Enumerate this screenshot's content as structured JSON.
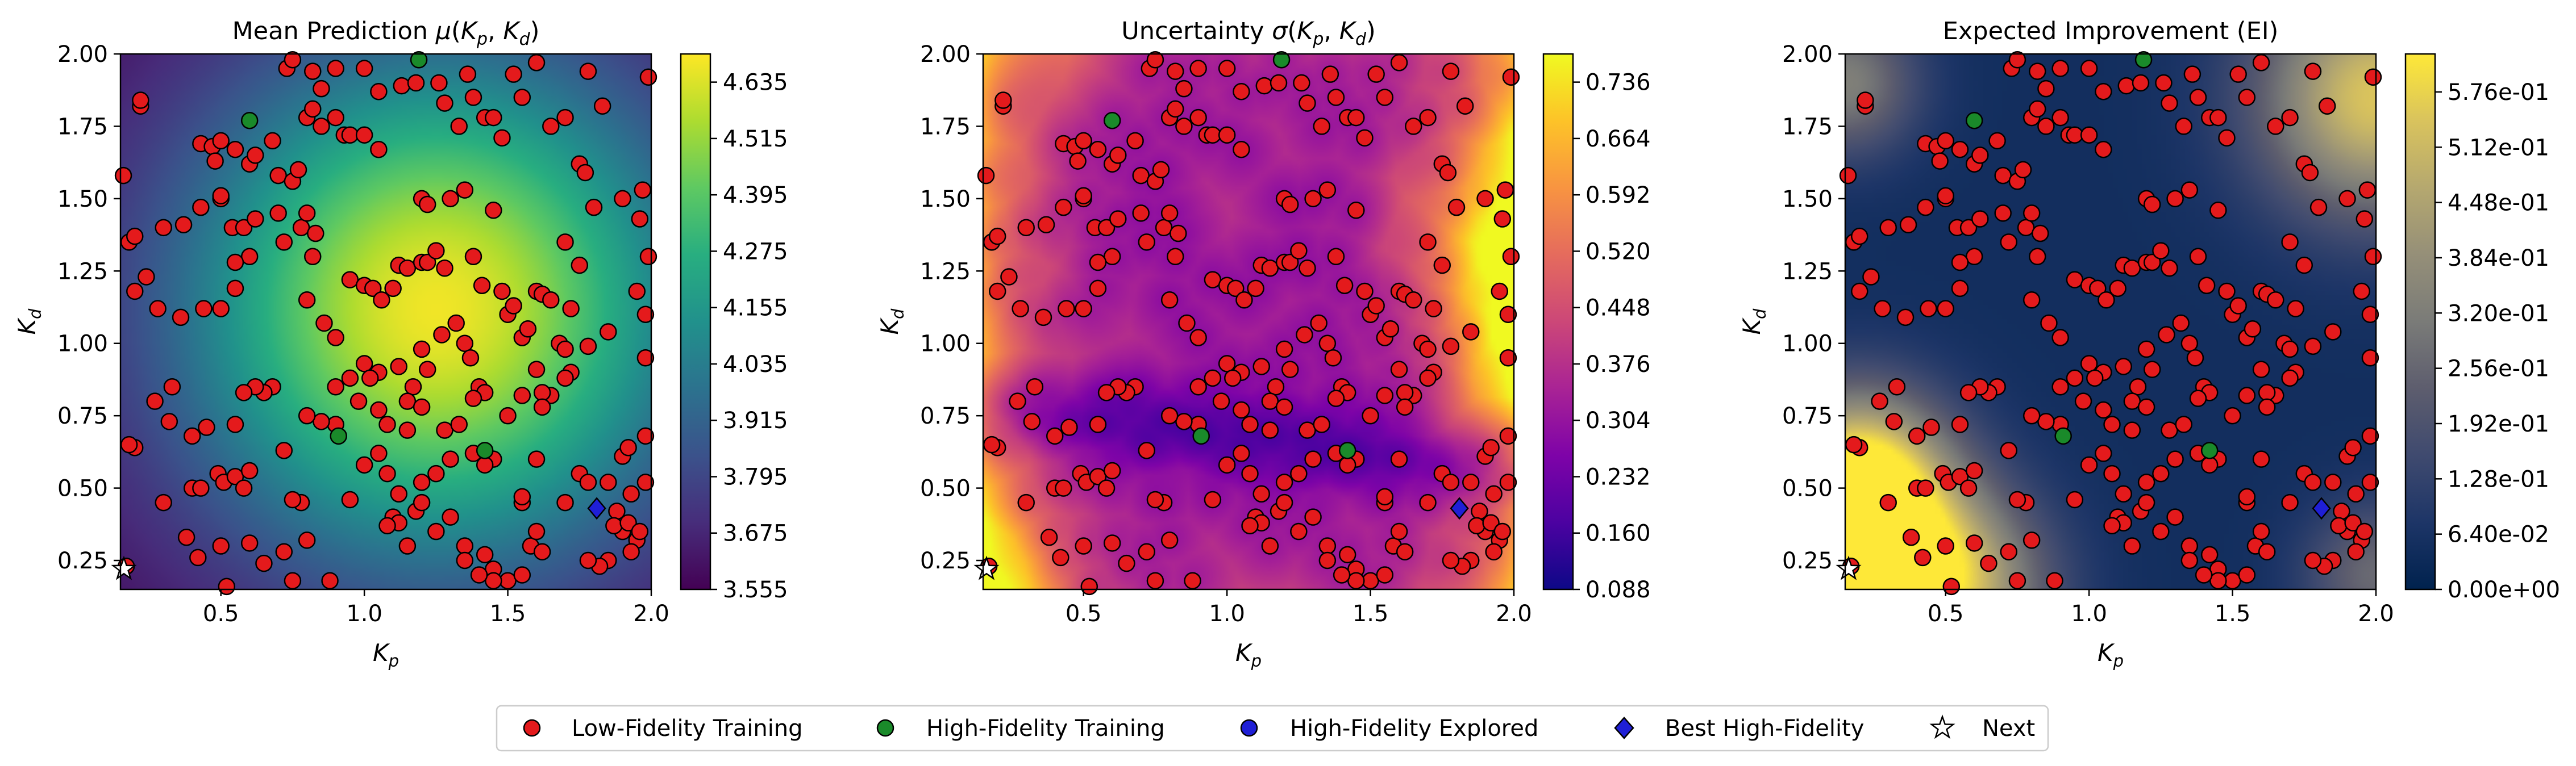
{
  "chart_data": [
    {
      "type": "heatmap",
      "title": "Mean Prediction μ(K_p, K_d)",
      "title_parts": {
        "pre": "Mean Prediction ",
        "sym": "μ",
        "open": "(",
        "a": "K",
        "asub": "p",
        "comma": ", ",
        "b": "K",
        "bsub": "d",
        "close": ")"
      },
      "xlabel": {
        "base": "K",
        "sub": "p"
      },
      "ylabel": {
        "base": "K",
        "sub": "d"
      },
      "xlim": [
        0.15,
        2.0
      ],
      "ylim": [
        0.15,
        2.0
      ],
      "xticks": [
        "0.5",
        "1.0",
        "1.5",
        "2.0"
      ],
      "yticks": [
        "0.25",
        "0.50",
        "0.75",
        "1.00",
        "1.25",
        "1.50",
        "1.75",
        "2.00"
      ],
      "colormap": "viridis",
      "colorbar": {
        "min": 3.555,
        "max": 4.695,
        "ticks": [
          "3.555",
          "3.675",
          "3.795",
          "3.915",
          "4.035",
          "4.155",
          "4.275",
          "4.395",
          "4.515",
          "4.635"
        ]
      },
      "field": {
        "kind": "gaussian",
        "center": [
          1.25,
          1.12
        ],
        "width": 0.62,
        "low": 3.56,
        "high": 4.69
      }
    },
    {
      "type": "heatmap",
      "title": "Uncertainty σ(K_p, K_d)",
      "title_parts": {
        "pre": "Uncertainty ",
        "sym": "σ",
        "open": "(",
        "a": "K",
        "asub": "p",
        "comma": ", ",
        "b": "K",
        "bsub": "d",
        "close": ")"
      },
      "xlabel": {
        "base": "K",
        "sub": "p"
      },
      "ylabel": {
        "base": "K",
        "sub": "d"
      },
      "xlim": [
        0.15,
        2.0
      ],
      "ylim": [
        0.15,
        2.0
      ],
      "xticks": [
        "0.5",
        "1.0",
        "1.5",
        "2.0"
      ],
      "yticks": [
        "0.25",
        "0.50",
        "0.75",
        "1.00",
        "1.25",
        "1.50",
        "1.75",
        "2.00"
      ],
      "colormap": "plasma",
      "colorbar": {
        "min": 0.088,
        "max": 0.772,
        "ticks": [
          "0.088",
          "0.160",
          "0.232",
          "0.304",
          "0.376",
          "0.448",
          "0.520",
          "0.592",
          "0.664",
          "0.736"
        ]
      },
      "field": {
        "kind": "uncertainty",
        "low": 0.09,
        "high": 0.76
      }
    },
    {
      "type": "heatmap",
      "title": "Expected Improvement (EI)",
      "title_parts": {
        "pre": "Expected Improvement (EI)"
      },
      "xlabel": {
        "base": "K",
        "sub": "p"
      },
      "ylabel": {
        "base": "K",
        "sub": "d"
      },
      "xlim": [
        0.15,
        2.0
      ],
      "ylim": [
        0.15,
        2.0
      ],
      "xticks": [
        "0.5",
        "1.0",
        "1.5",
        "2.0"
      ],
      "yticks": [
        "0.25",
        "0.50",
        "0.75",
        "1.00",
        "1.25",
        "1.50",
        "1.75",
        "2.00"
      ],
      "colormap": "cividis",
      "colorbar": {
        "min": 0.0,
        "max": 0.62,
        "ticks": [
          "0.00e+00",
          "6.40e-02",
          "1.28e-01",
          "1.92e-01",
          "2.56e-01",
          "3.20e-01",
          "3.84e-01",
          "4.48e-01",
          "5.12e-01",
          "5.76e-01"
        ]
      },
      "field": {
        "kind": "ei",
        "low": 0.0,
        "high": 0.62
      }
    }
  ],
  "points": {
    "low_fidelity": [
      [
        0.16,
        1.58
      ],
      [
        0.18,
        1.35
      ],
      [
        0.2,
        1.37
      ],
      [
        0.22,
        1.82
      ],
      [
        0.22,
        1.84
      ],
      [
        0.24,
        1.23
      ],
      [
        0.2,
        1.18
      ],
      [
        0.28,
        1.12
      ],
      [
        0.36,
        1.09
      ],
      [
        0.44,
        1.12
      ],
      [
        0.27,
        0.8
      ],
      [
        0.33,
        0.85
      ],
      [
        0.32,
        0.73
      ],
      [
        0.4,
        0.68
      ],
      [
        0.45,
        0.71
      ],
      [
        0.2,
        0.64
      ],
      [
        0.18,
        0.65
      ],
      [
        0.3,
        0.45
      ],
      [
        0.4,
        0.5
      ],
      [
        0.43,
        0.5
      ],
      [
        0.49,
        0.55
      ],
      [
        0.51,
        0.52
      ],
      [
        0.55,
        0.54
      ],
      [
        0.58,
        0.5
      ],
      [
        0.6,
        0.56
      ],
      [
        0.38,
        0.33
      ],
      [
        0.42,
        0.26
      ],
      [
        0.5,
        0.3
      ],
      [
        0.52,
        0.16
      ],
      [
        0.6,
        0.31
      ],
      [
        0.65,
        0.24
      ],
      [
        0.72,
        0.28
      ],
      [
        0.75,
        0.18
      ],
      [
        0.78,
        0.45
      ],
      [
        0.75,
        0.46
      ],
      [
        0.8,
        0.32
      ],
      [
        0.88,
        0.18
      ],
      [
        0.17,
        0.23
      ],
      [
        0.43,
        1.69
      ],
      [
        0.47,
        1.68
      ],
      [
        0.5,
        1.7
      ],
      [
        0.48,
        1.63
      ],
      [
        0.55,
        1.67
      ],
      [
        0.6,
        1.62
      ],
      [
        0.62,
        1.65
      ],
      [
        0.68,
        1.7
      ],
      [
        0.7,
        1.58
      ],
      [
        0.75,
        1.56
      ],
      [
        0.77,
        1.6
      ],
      [
        0.8,
        1.78
      ],
      [
        0.82,
        1.81
      ],
      [
        0.85,
        1.75
      ],
      [
        0.9,
        1.78
      ],
      [
        0.93,
        1.72
      ],
      [
        0.95,
        1.72
      ],
      [
        1.0,
        1.72
      ],
      [
        1.05,
        1.67
      ],
      [
        1.05,
        1.87
      ],
      [
        1.0,
        1.95
      ],
      [
        0.73,
        1.95
      ],
      [
        0.75,
        1.98
      ],
      [
        0.82,
        1.94
      ],
      [
        0.85,
        1.88
      ],
      [
        0.9,
        1.95
      ],
      [
        1.13,
        1.89
      ],
      [
        1.18,
        1.9
      ],
      [
        1.26,
        1.9
      ],
      [
        1.28,
        1.83
      ],
      [
        1.33,
        1.75
      ],
      [
        1.38,
        1.85
      ],
      [
        1.36,
        1.93
      ],
      [
        1.42,
        1.78
      ],
      [
        1.45,
        1.78
      ],
      [
        1.48,
        1.71
      ],
      [
        1.52,
        1.93
      ],
      [
        1.55,
        1.85
      ],
      [
        1.6,
        1.97
      ],
      [
        1.65,
        1.75
      ],
      [
        1.7,
        1.78
      ],
      [
        1.78,
        1.94
      ],
      [
        1.83,
        1.82
      ],
      [
        1.75,
        1.62
      ],
      [
        1.77,
        1.59
      ],
      [
        1.8,
        1.47
      ],
      [
        1.9,
        1.5
      ],
      [
        1.97,
        1.53
      ],
      [
        1.96,
        1.43
      ],
      [
        1.99,
        1.92
      ],
      [
        0.3,
        1.4
      ],
      [
        0.37,
        1.41
      ],
      [
        0.43,
        1.47
      ],
      [
        0.5,
        1.5
      ],
      [
        0.5,
        1.51
      ],
      [
        0.54,
        1.4
      ],
      [
        0.58,
        1.4
      ],
      [
        0.62,
        1.43
      ],
      [
        0.6,
        1.3
      ],
      [
        0.55,
        1.28
      ],
      [
        0.55,
        1.19
      ],
      [
        0.5,
        1.12
      ],
      [
        0.7,
        1.45
      ],
      [
        0.72,
        1.35
      ],
      [
        0.78,
        1.4
      ],
      [
        0.8,
        1.45
      ],
      [
        0.83,
        1.38
      ],
      [
        0.82,
        1.3
      ],
      [
        0.8,
        1.15
      ],
      [
        0.86,
        1.07
      ],
      [
        0.9,
        1.02
      ],
      [
        0.95,
        1.22
      ],
      [
        1.0,
        1.2
      ],
      [
        1.03,
        1.19
      ],
      [
        1.06,
        1.15
      ],
      [
        1.1,
        1.19
      ],
      [
        1.12,
        1.27
      ],
      [
        1.15,
        1.26
      ],
      [
        1.2,
        1.28
      ],
      [
        1.22,
        1.28
      ],
      [
        1.25,
        1.32
      ],
      [
        1.28,
        1.26
      ],
      [
        1.2,
        1.5
      ],
      [
        1.22,
        1.48
      ],
      [
        1.3,
        1.5
      ],
      [
        1.35,
        1.53
      ],
      [
        1.45,
        1.46
      ],
      [
        1.38,
        1.3
      ],
      [
        1.41,
        1.2
      ],
      [
        1.48,
        1.18
      ],
      [
        1.5,
        1.1
      ],
      [
        1.52,
        1.13
      ],
      [
        1.55,
        1.02
      ],
      [
        1.57,
        1.05
      ],
      [
        1.6,
        1.18
      ],
      [
        1.62,
        1.17
      ],
      [
        1.65,
        1.15
      ],
      [
        1.7,
        1.35
      ],
      [
        1.75,
        1.27
      ],
      [
        1.72,
        1.12
      ],
      [
        1.78,
        0.99
      ],
      [
        1.85,
        1.04
      ],
      [
        1.68,
        1.0
      ],
      [
        1.7,
        0.98
      ],
      [
        1.72,
        0.9
      ],
      [
        1.7,
        0.88
      ],
      [
        1.65,
        0.82
      ],
      [
        1.6,
        0.91
      ],
      [
        1.62,
        0.83
      ],
      [
        1.55,
        0.82
      ],
      [
        1.5,
        0.75
      ],
      [
        1.62,
        0.78
      ],
      [
        1.27,
        1.03
      ],
      [
        1.32,
        1.07
      ],
      [
        1.35,
        1.0
      ],
      [
        1.37,
        0.95
      ],
      [
        1.4,
        0.85
      ],
      [
        1.42,
        0.83
      ],
      [
        1.38,
        0.81
      ],
      [
        1.22,
        0.91
      ],
      [
        1.2,
        0.98
      ],
      [
        1.17,
        0.85
      ],
      [
        1.15,
        0.8
      ],
      [
        1.12,
        0.92
      ],
      [
        1.05,
        0.9
      ],
      [
        1.0,
        0.93
      ],
      [
        1.02,
        0.88
      ],
      [
        0.95,
        0.88
      ],
      [
        0.9,
        0.85
      ],
      [
        0.98,
        0.8
      ],
      [
        0.9,
        0.72
      ],
      [
        0.85,
        0.73
      ],
      [
        0.8,
        0.75
      ],
      [
        0.68,
        0.85
      ],
      [
        0.65,
        0.83
      ],
      [
        0.62,
        0.85
      ],
      [
        0.58,
        0.83
      ],
      [
        0.55,
        0.72
      ],
      [
        0.72,
        0.63
      ],
      [
        1.05,
        0.77
      ],
      [
        1.08,
        0.72
      ],
      [
        1.15,
        0.7
      ],
      [
        1.2,
        0.78
      ],
      [
        1.28,
        0.7
      ],
      [
        1.33,
        0.72
      ],
      [
        1.38,
        0.62
      ],
      [
        1.45,
        0.6
      ],
      [
        1.42,
        0.58
      ],
      [
        1.3,
        0.6
      ],
      [
        1.25,
        0.55
      ],
      [
        1.2,
        0.52
      ],
      [
        1.12,
        0.48
      ],
      [
        1.08,
        0.55
      ],
      [
        1.05,
        0.62
      ],
      [
        1.0,
        0.58
      ],
      [
        0.95,
        0.46
      ],
      [
        1.1,
        0.4
      ],
      [
        1.12,
        0.38
      ],
      [
        1.18,
        0.42
      ],
      [
        1.2,
        0.45
      ],
      [
        1.25,
        0.35
      ],
      [
        1.15,
        0.3
      ],
      [
        1.08,
        0.37
      ],
      [
        1.3,
        0.4
      ],
      [
        1.35,
        0.3
      ],
      [
        1.42,
        0.27
      ],
      [
        1.45,
        0.22
      ],
      [
        1.5,
        0.18
      ],
      [
        1.55,
        0.2
      ],
      [
        1.58,
        0.3
      ],
      [
        1.6,
        0.35
      ],
      [
        1.62,
        0.28
      ],
      [
        1.55,
        0.45
      ],
      [
        1.55,
        0.47
      ],
      [
        1.6,
        0.6
      ],
      [
        1.75,
        0.55
      ],
      [
        1.78,
        0.52
      ],
      [
        1.85,
        0.52
      ],
      [
        1.88,
        0.42
      ],
      [
        1.93,
        0.48
      ],
      [
        1.9,
        0.35
      ],
      [
        1.87,
        0.37
      ],
      [
        1.92,
        0.38
      ],
      [
        1.95,
        0.32
      ],
      [
        1.93,
        0.28
      ],
      [
        1.85,
        0.25
      ],
      [
        1.82,
        0.23
      ],
      [
        1.78,
        0.25
      ],
      [
        1.96,
        0.35
      ],
      [
        1.9,
        0.61
      ],
      [
        1.7,
        0.45
      ],
      [
        1.45,
        0.18
      ],
      [
        1.4,
        0.2
      ],
      [
        1.35,
        0.25
      ],
      [
        1.98,
        0.52
      ],
      [
        1.98,
        0.95
      ],
      [
        1.98,
        1.1
      ],
      [
        1.95,
        1.18
      ],
      [
        1.99,
        1.3
      ],
      [
        1.98,
        0.68
      ],
      [
        1.92,
        0.64
      ]
    ],
    "high_fidelity": [
      [
        0.6,
        1.77
      ],
      [
        1.19,
        1.98
      ],
      [
        0.91,
        0.68
      ],
      [
        1.42,
        0.63
      ]
    ],
    "explored": [],
    "best": [
      [
        1.81,
        0.43
      ]
    ],
    "next": [
      [
        0.15,
        0.22
      ]
    ]
  },
  "legend": {
    "items": [
      {
        "label": "Low-Fidelity Training",
        "marker": "circle",
        "color": "#e41a1c"
      },
      {
        "label": "High-Fidelity Training",
        "marker": "circle",
        "color": "#1a8a2a"
      },
      {
        "label": "High-Fidelity Explored",
        "marker": "circle",
        "color": "#1f1fd6"
      },
      {
        "label": "Best High-Fidelity",
        "marker": "diamond",
        "color": "#1f1fd6"
      },
      {
        "label": "Next",
        "marker": "star",
        "color": "#ffffff"
      }
    ],
    "location": "bottom-center"
  }
}
